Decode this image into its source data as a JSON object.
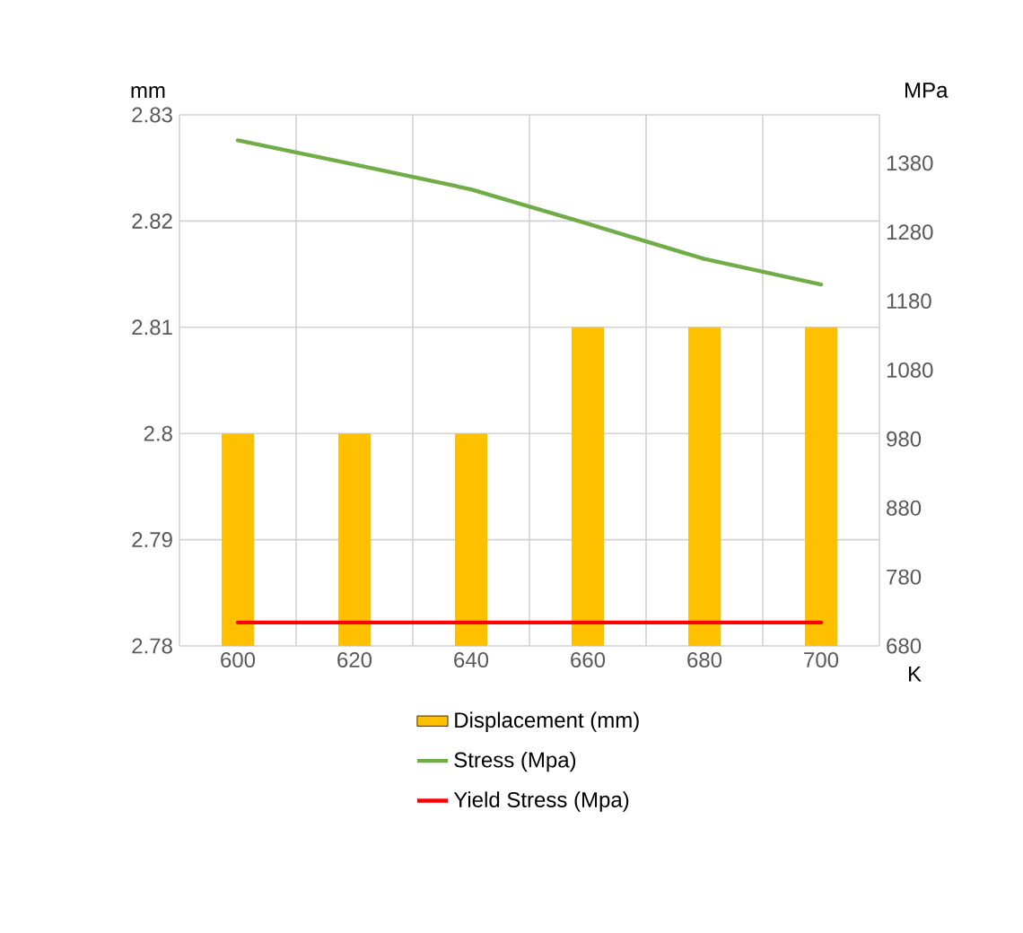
{
  "chart_data": {
    "type": "bar",
    "xlabel": "K",
    "ylabel": "mm",
    "y2label": "MPa",
    "categories": [
      "600",
      "620",
      "640",
      "660",
      "680",
      "700"
    ],
    "series": [
      {
        "name": "Displacement (mm)",
        "color": "#ffc000",
        "values": [
          2.8,
          2.8,
          2.8,
          2.81,
          2.81,
          2.81
        ]
      },
      {
        "name": "Stress (Mpa)",
        "type": "line",
        "axis": "y2",
        "color": "#70ad47",
        "values": [
          1413,
          1378,
          1342,
          1292,
          1241,
          1204
        ]
      },
      {
        "name": "Yield Stress (Mpa)",
        "type": "line",
        "axis": "y2",
        "color": "#ff0000",
        "values": [
          714,
          714,
          714,
          714,
          714,
          714
        ]
      }
    ],
    "ylim": [
      2.78,
      2.83
    ],
    "yticks": [
      2.78,
      2.79,
      2.8,
      2.81,
      2.82,
      2.83
    ],
    "y2lim": [
      680,
      1450
    ],
    "y2ticks": [
      680,
      780,
      880,
      980,
      1080,
      1180,
      1280,
      1380
    ],
    "grid": true,
    "legend": "bottom",
    "marker": "none",
    "line_style": "solid"
  }
}
